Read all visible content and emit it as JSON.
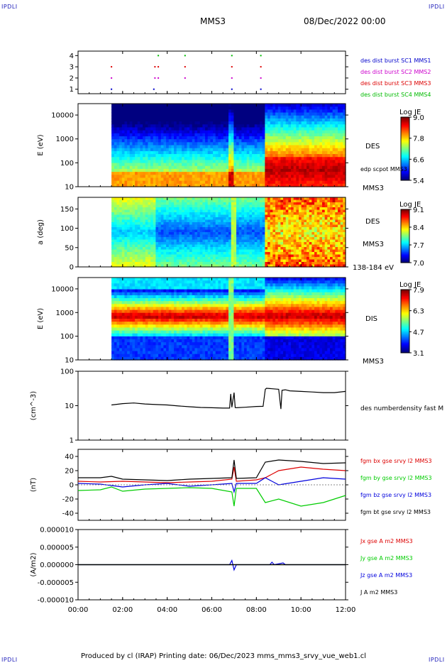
{
  "header": {
    "corner_label": "IPDLI",
    "spacecraft": "MMS3",
    "datetime": "08/Dec/2022 00:00"
  },
  "footer": {
    "text": "Produced by cl (IRAP)   Printing date: 06/Dec/2023   mms_mms3_srvy_vue_web1.cl"
  },
  "x_axis": {
    "ticks": [
      "00:00",
      "02:00",
      "04:00",
      "06:00",
      "08:00",
      "10:00",
      "12:00"
    ],
    "range_hours": [
      0,
      12
    ]
  },
  "colors": {
    "mms1": "#0000cc",
    "mms2": "#cc00cc",
    "mms3": "#dd0000",
    "mms4": "#00bb00",
    "bx": "#dd0000",
    "by": "#00cc00",
    "bz": "#0000dd",
    "bt": "#000000"
  },
  "chart_data": [
    {
      "type": "scatter",
      "panel": "burst",
      "yticks": [
        "1",
        "2",
        "3",
        "4"
      ],
      "ylim": [
        0.6,
        4.4
      ],
      "series": [
        {
          "name": "des dist burst SC1 MMS1",
          "color": "#0000cc",
          "y": 1,
          "x_hours": [
            1.5,
            3.4,
            6.9,
            8.2
          ]
        },
        {
          "name": "des dist burst SC2 MMS2",
          "color": "#cc00cc",
          "y": 2,
          "x_hours": [
            1.5,
            3.45,
            3.6,
            4.8,
            6.9,
            8.2
          ]
        },
        {
          "name": "des dist burst SC3 MMS3",
          "color": "#dd0000",
          "y": 3,
          "x_hours": [
            1.5,
            3.45,
            3.6,
            4.8,
            6.9,
            8.2
          ]
        },
        {
          "name": "des dist burst SC4 MMS4",
          "color": "#00bb00",
          "y": 4,
          "x_hours": [
            3.6,
            4.8,
            6.9,
            8.2
          ]
        }
      ]
    },
    {
      "type": "heatmap",
      "panel": "des_energy",
      "ylabel": "E (eV)",
      "yticks": [
        "10",
        "100",
        "1000",
        "10000"
      ],
      "ylim": [
        10,
        30000
      ],
      "ylog": true,
      "side_labels": [
        "DES",
        "edp scpot MMS3",
        "MMS3"
      ],
      "colorbar": {
        "title": "Log JE",
        "ticks": [
          "9.0",
          "7.8",
          "6.6",
          "5.4"
        ],
        "range": [
          5.4,
          9.0
        ]
      },
      "data_start_hours": 1.5,
      "change_hours": 8.4
    },
    {
      "type": "heatmap",
      "panel": "des_pitch",
      "ylabel": "a (deg)",
      "yticks": [
        "0",
        "50",
        "100",
        "150"
      ],
      "ylim": [
        0,
        180
      ],
      "side_labels": [
        "DES",
        "MMS3",
        "138-184 eV"
      ],
      "colorbar": {
        "title": "Log JE",
        "ticks": [
          "9.1",
          "8.4",
          "7.7",
          "7.0"
        ],
        "range": [
          7.0,
          9.1
        ]
      },
      "data_start_hours": 1.5,
      "change_hours": 8.4
    },
    {
      "type": "heatmap",
      "panel": "dis_energy",
      "ylabel": "E (eV)",
      "yticks": [
        "10",
        "100",
        "1000",
        "10000"
      ],
      "ylim": [
        10,
        30000
      ],
      "ylog": true,
      "side_labels": [
        "DIS",
        "MMS3"
      ],
      "colorbar": {
        "title": "Log JE",
        "ticks": [
          "7.9",
          "6.3",
          "4.7",
          "3.1"
        ],
        "range": [
          3.1,
          7.9
        ]
      },
      "data_start_hours": 1.5,
      "change_hours": 8.4
    },
    {
      "type": "line",
      "panel": "density",
      "ylabel": "(cm^-3)",
      "yticks": [
        "1",
        "10",
        "100"
      ],
      "ylim": [
        1,
        100
      ],
      "ylog": true,
      "series": [
        {
          "name": "des numberdensity fast M",
          "color": "#000000",
          "x": [
            1.5,
            2.0,
            2.5,
            3.0,
            3.5,
            4.0,
            4.5,
            5.0,
            5.5,
            6.0,
            6.5,
            6.8,
            6.85,
            6.9,
            7.0,
            7.05,
            7.1,
            7.5,
            8.0,
            8.3,
            8.4,
            8.45,
            9.0,
            9.1,
            9.15,
            9.3,
            9.5,
            10.0,
            10.5,
            11.0,
            11.5,
            12.0
          ],
          "y": [
            10.5,
            11.5,
            12,
            11.2,
            10.8,
            10.5,
            9.8,
            9.3,
            8.9,
            8.7,
            8.5,
            8.5,
            22,
            9,
            24,
            8.8,
            8.7,
            9,
            9.5,
            9.6,
            30,
            32,
            30,
            8,
            28,
            29,
            27,
            26,
            25,
            24,
            24,
            26
          ]
        }
      ]
    },
    {
      "type": "line",
      "panel": "magnetic_field",
      "ylabel": "(nT)",
      "yticks": [
        "-40",
        "-20",
        "0",
        "20",
        "40"
      ],
      "ylim": [
        -50,
        50
      ],
      "series": [
        {
          "name": "fgm bx gse srvy l2 MMS3",
          "color": "#dd0000",
          "x": [
            0,
            1,
            2,
            3,
            4,
            5,
            6,
            6.9,
            7.0,
            7.1,
            8,
            8.4,
            9,
            10,
            11,
            12
          ],
          "y": [
            5,
            4,
            5,
            4,
            3,
            4,
            5,
            8,
            25,
            5,
            7,
            10,
            20,
            25,
            22,
            20
          ]
        },
        {
          "name": "fgm by gse srvy l2 MMS3",
          "color": "#00cc00",
          "x": [
            0,
            1,
            1.5,
            2,
            3,
            4,
            5,
            6,
            6.9,
            7.0,
            7.1,
            8,
            8.4,
            9,
            10,
            11,
            12
          ],
          "y": [
            -8,
            -7,
            -3,
            -9,
            -6,
            -5,
            -4,
            -5,
            -10,
            -30,
            -5,
            -5,
            -25,
            -20,
            -30,
            -25,
            -15
          ]
        },
        {
          "name": "fgm bz gse srvy l2 MMS3",
          "color": "#0000dd",
          "x": [
            0,
            1,
            2,
            3,
            4,
            5,
            6,
            6.9,
            7.0,
            7.1,
            8,
            8.4,
            9,
            10,
            11,
            12
          ],
          "y": [
            2,
            1,
            -3,
            0,
            2,
            -2,
            0,
            2,
            -10,
            2,
            2,
            10,
            0,
            5,
            10,
            8
          ]
        },
        {
          "name": "fgm bt gse srvy l2 MMS3",
          "color": "#000000",
          "x": [
            0,
            1,
            1.5,
            2,
            3,
            4,
            5,
            6,
            6.9,
            7.0,
            7.1,
            8,
            8.4,
            9,
            10,
            11,
            12
          ],
          "y": [
            10,
            10,
            12,
            8,
            7,
            6,
            8,
            9,
            10,
            35,
            9,
            10,
            32,
            35,
            33,
            30,
            31
          ]
        }
      ]
    },
    {
      "type": "line",
      "panel": "current_density",
      "ylabel": "(A/m2)",
      "yticks": [
        "-0.000010",
        "-0.000005",
        "0.000000",
        "0.000005",
        "0.000010"
      ],
      "ylim": [
        -1e-05,
        1e-05
      ],
      "series": [
        {
          "name": "Jx gse A m2 MMS3",
          "color": "#dd0000",
          "x": [
            0,
            12
          ],
          "y": [
            0,
            0
          ]
        },
        {
          "name": "Jy gse A m2 MMS3",
          "color": "#00cc00",
          "x": [
            0,
            12
          ],
          "y": [
            0,
            0
          ]
        },
        {
          "name": "Jz gse A m2 MMS3",
          "color": "#0000dd",
          "x": [
            0,
            6.8,
            6.9,
            7.0,
            7.1,
            8.6,
            8.7,
            8.8,
            9.2,
            9.3,
            12
          ],
          "y": [
            0,
            0,
            1.2e-06,
            -1.5e-06,
            0,
            0,
            7e-07,
            0,
            5e-07,
            0,
            0
          ]
        },
        {
          "name": "J A m2 MMS3",
          "color": "#000000",
          "x": [
            0,
            12
          ],
          "y": [
            0,
            0
          ]
        }
      ]
    }
  ]
}
